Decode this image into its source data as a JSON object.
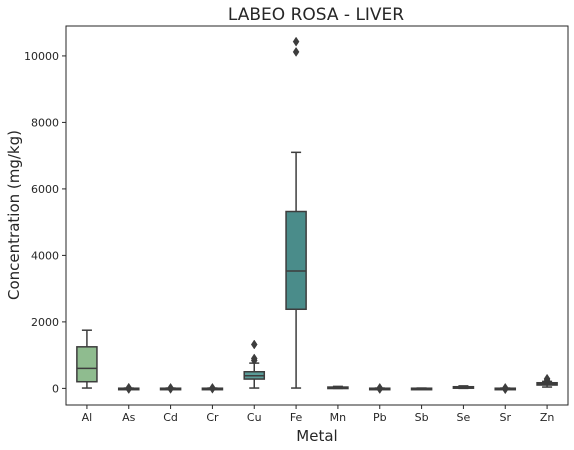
{
  "chart_data": {
    "type": "box",
    "title": "LABEO ROSA - LIVER",
    "xlabel": "Metal",
    "ylabel": "Concentration (mg/kg)",
    "ylim": [
      -500,
      10900
    ],
    "yticks": [
      0,
      2000,
      4000,
      6000,
      8000,
      10000
    ],
    "grid": false,
    "categories": [
      "Al",
      "As",
      "Cd",
      "Cr",
      "Cu",
      "Fe",
      "Mn",
      "Pb",
      "Sb",
      "Se",
      "Sr",
      "Zn"
    ],
    "boxes": [
      {
        "label": "Al",
        "whisker_low": 10,
        "q1": 200,
        "median": 600,
        "q3": 1250,
        "whisker_high": 1750,
        "outliers": [],
        "color": "#8fbc8f"
      },
      {
        "label": "As",
        "whisker_low": 0,
        "q1": 0,
        "median": 0,
        "q3": 5,
        "whisker_high": 10,
        "outliers": [
          -20,
          20
        ],
        "color": "#82b597"
      },
      {
        "label": "Cd",
        "whisker_low": 0,
        "q1": 0,
        "median": 0,
        "q3": 5,
        "whisker_high": 10,
        "outliers": [
          -15,
          15
        ],
        "color": "#74ad98"
      },
      {
        "label": "Cr",
        "whisker_low": 0,
        "q1": 0,
        "median": 0,
        "q3": 5,
        "whisker_high": 10,
        "outliers": [
          -10,
          15
        ],
        "color": "#67a598"
      },
      {
        "label": "Cu",
        "whisker_low": 10,
        "q1": 280,
        "median": 380,
        "q3": 500,
        "whisker_high": 760,
        "outliers": [
          840,
          900,
          1320
        ],
        "color": "#5a9c98"
      },
      {
        "label": "Fe",
        "whisker_low": 10,
        "q1": 2380,
        "median": 3530,
        "q3": 5320,
        "whisker_high": 7100,
        "outliers": [
          10120,
          10430
        ],
        "color": "#4a8c8a"
      },
      {
        "label": "Mn",
        "whisker_low": 0,
        "q1": 10,
        "median": 25,
        "q3": 40,
        "whisker_high": 60,
        "outliers": [],
        "color": "#458584"
      },
      {
        "label": "Pb",
        "whisker_low": 0,
        "q1": 0,
        "median": 0,
        "q3": 5,
        "whisker_high": 10,
        "outliers": [
          -20,
          15
        ],
        "color": "#3f7d7e"
      },
      {
        "label": "Sb",
        "whisker_low": 0,
        "q1": 0,
        "median": 0,
        "q3": 5,
        "whisker_high": 10,
        "outliers": [],
        "color": "#3a7678"
      },
      {
        "label": "Se",
        "whisker_low": 0,
        "q1": 20,
        "median": 35,
        "q3": 50,
        "whisker_high": 75,
        "outliers": [],
        "color": "#3e7b77"
      },
      {
        "label": "Sr",
        "whisker_low": 0,
        "q1": 0,
        "median": 0,
        "q3": 5,
        "whisker_high": 10,
        "outliers": [
          -25,
          15
        ],
        "color": "#447f78"
      },
      {
        "label": "Zn",
        "whisker_low": 40,
        "q1": 100,
        "median": 140,
        "q3": 170,
        "whisker_high": 210,
        "outliers": [
          250,
          290
        ],
        "color": "#3c7c7c"
      }
    ]
  }
}
